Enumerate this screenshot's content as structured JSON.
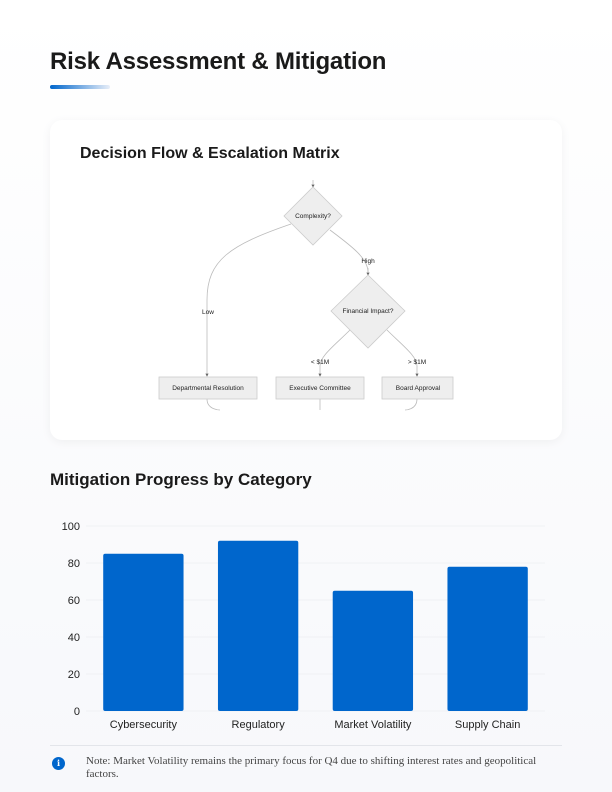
{
  "page": {
    "title": "Risk Assessment & Mitigation"
  },
  "flow": {
    "title": "Decision Flow & Escalation Matrix",
    "nodes": {
      "complexity": "Complexity?",
      "financial": "Financial Impact?",
      "departmental": "Departmental Resolution",
      "executive": "Executive Committee",
      "board": "Board Approval"
    },
    "edges": {
      "low": "Low",
      "high": "High",
      "lt1m": "< $1M",
      "gt1m": "> $1M"
    }
  },
  "chart_section": {
    "title": "Mitigation Progress by Category"
  },
  "chart_data": {
    "type": "bar",
    "title": "Mitigation Progress by Category",
    "categories": [
      "Cybersecurity",
      "Regulatory",
      "Market Volatility",
      "Supply Chain"
    ],
    "values": [
      85,
      92,
      65,
      78
    ],
    "ylim": [
      0,
      100
    ],
    "yticks": [
      0,
      20,
      40,
      60,
      80,
      100
    ],
    "grid": true,
    "colors": {
      "bar": "#0066cc"
    }
  },
  "note": {
    "icon": "info-icon",
    "text": "Note: Market Volatility remains the primary focus for Q4 due to shifting interest rates and geopolitical factors."
  }
}
